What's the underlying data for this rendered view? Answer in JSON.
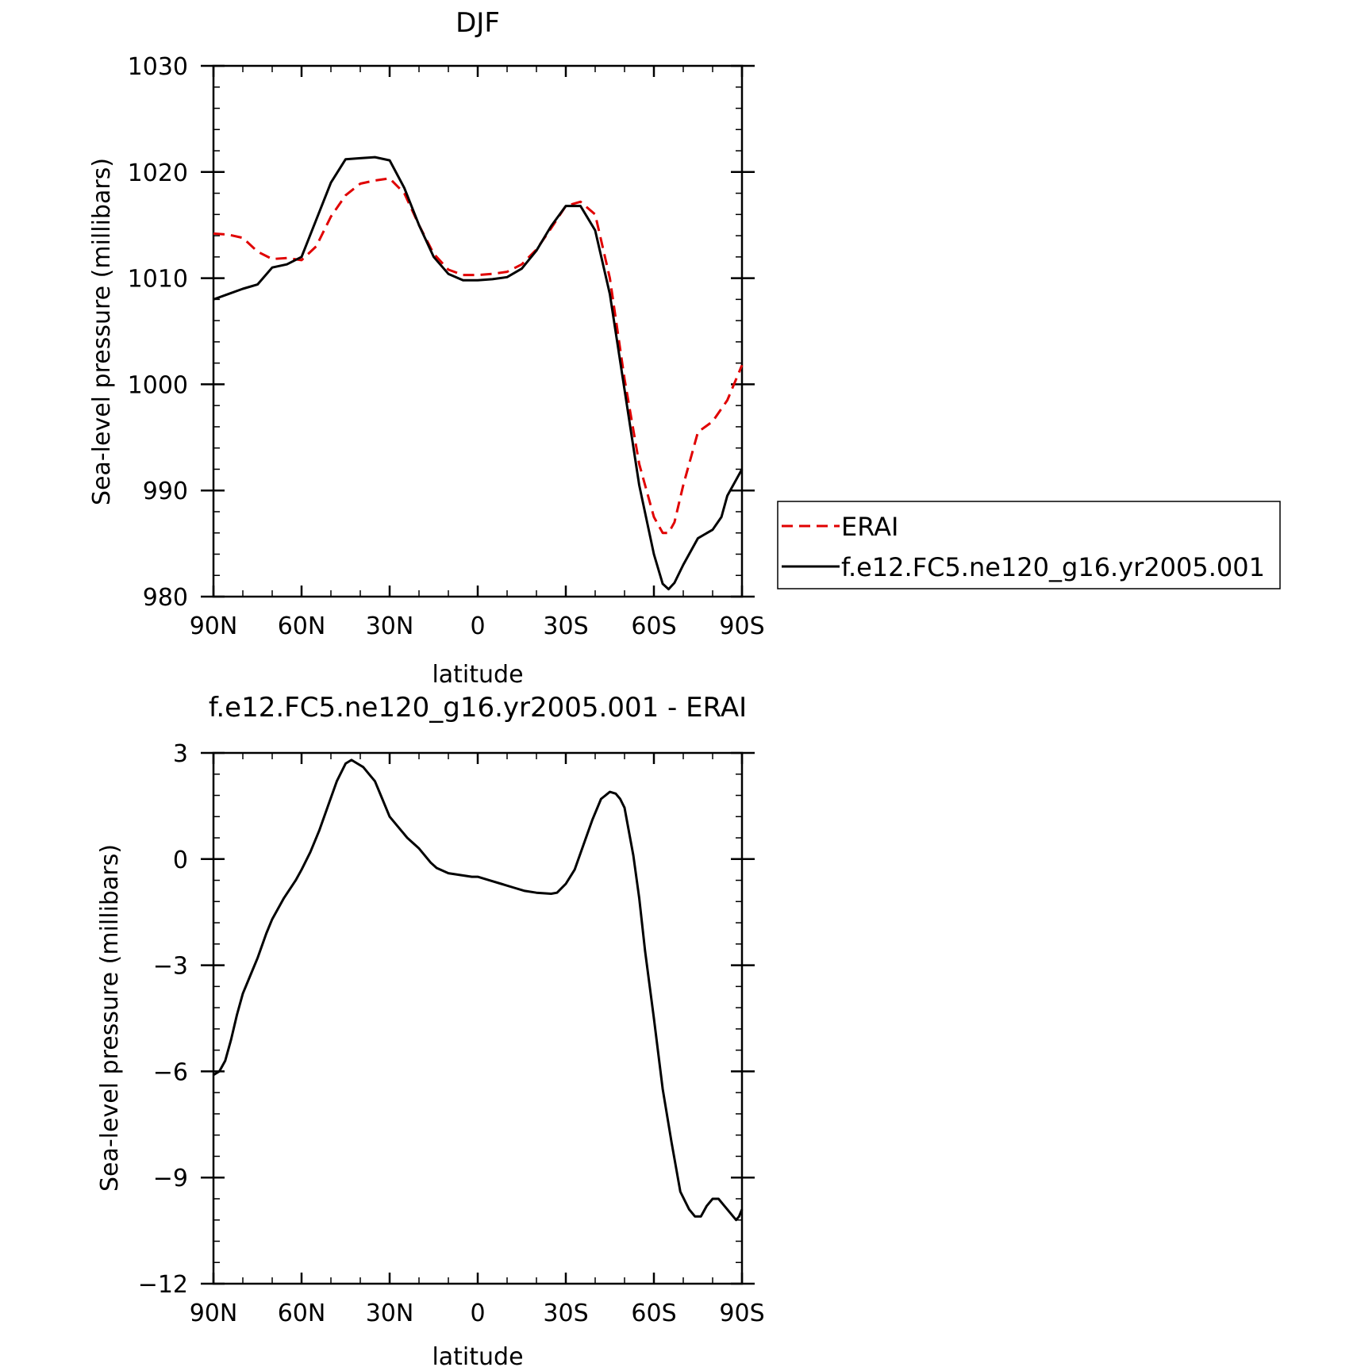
{
  "chart_data": [
    {
      "type": "line",
      "title": "DJF",
      "xlabel": "latitude",
      "ylabel": "Sea-level pressure (millibars)",
      "xlim": [
        90,
        -90
      ],
      "ylim": [
        980,
        1030
      ],
      "xticks": [
        90,
        60,
        30,
        0,
        -30,
        -60,
        -90
      ],
      "xtick_labels": [
        "90N",
        "60N",
        "30N",
        "0",
        "30S",
        "60S",
        "90S"
      ],
      "yticks": [
        980,
        990,
        1000,
        1010,
        1020,
        1030
      ],
      "ytick_labels": [
        "980",
        "990",
        "1000",
        "1010",
        "1020",
        "1030"
      ],
      "legend_position": "right",
      "series": [
        {
          "name": "ERAI",
          "color": "#e00000",
          "style": "dashed",
          "x": [
            90,
            85,
            80,
            75,
            70,
            65,
            60,
            55,
            50,
            45,
            40,
            35,
            30,
            25,
            20,
            15,
            10,
            5,
            0,
            -5,
            -10,
            -15,
            -20,
            -25,
            -30,
            -35,
            -40,
            -45,
            -50,
            -55,
            -60,
            -63,
            -65,
            -67,
            -70,
            -75,
            -80,
            -85,
            -90
          ],
          "values": [
            1014.2,
            1014.1,
            1013.8,
            1012.5,
            1011.8,
            1011.9,
            1011.7,
            1013.0,
            1015.8,
            1017.8,
            1018.9,
            1019.2,
            1019.4,
            1018.0,
            1015.0,
            1012.3,
            1010.8,
            1010.3,
            1010.3,
            1010.4,
            1010.6,
            1011.3,
            1012.7,
            1014.7,
            1016.8,
            1017.2,
            1016.0,
            1010.0,
            1000.5,
            992.5,
            987.5,
            986.0,
            986.0,
            987.0,
            990.5,
            995.5,
            996.5,
            998.5,
            1001.8
          ]
        },
        {
          "name": "f.e12.FC5.ne120_g16.yr2005.001",
          "color": "#000000",
          "style": "solid",
          "x": [
            90,
            85,
            80,
            75,
            70,
            65,
            60,
            55,
            50,
            45,
            40,
            35,
            30,
            25,
            20,
            15,
            10,
            5,
            0,
            -5,
            -10,
            -15,
            -20,
            -25,
            -30,
            -35,
            -40,
            -45,
            -50,
            -55,
            -60,
            -63,
            -65,
            -67,
            -70,
            -75,
            -80,
            -83,
            -85,
            -88,
            -90
          ],
          "values": [
            1008.0,
            1008.5,
            1009.0,
            1009.4,
            1011.0,
            1011.3,
            1012.0,
            1015.5,
            1019.0,
            1021.2,
            1021.3,
            1021.4,
            1021.1,
            1018.5,
            1015.0,
            1012.0,
            1010.4,
            1009.8,
            1009.8,
            1009.9,
            1010.1,
            1010.9,
            1012.6,
            1014.9,
            1016.8,
            1016.8,
            1014.5,
            1008.5,
            999.5,
            990.5,
            984.0,
            981.2,
            980.7,
            981.3,
            983.0,
            985.5,
            986.3,
            987.5,
            989.5,
            991.0,
            992.0
          ]
        }
      ]
    },
    {
      "type": "line",
      "title": "f.e12.FC5.ne120_g16.yr2005.001 - ERAI",
      "xlabel": "latitude",
      "ylabel": "Sea-level pressure (millibars)",
      "xlim": [
        90,
        -90
      ],
      "ylim": [
        -12,
        3
      ],
      "xticks": [
        90,
        60,
        30,
        0,
        -30,
        -60,
        -90
      ],
      "xtick_labels": [
        "90N",
        "60N",
        "30N",
        "0",
        "30S",
        "60S",
        "90S"
      ],
      "yticks": [
        -12,
        -9,
        -6,
        -3,
        0,
        3
      ],
      "ytick_labels": [
        "−12",
        "−9",
        "−6",
        "−3",
        "0",
        "3"
      ],
      "series": [
        {
          "color": "#000000",
          "style": "solid",
          "x": [
            90,
            88,
            86,
            84,
            82,
            80,
            77,
            75,
            72,
            70,
            66,
            62,
            60,
            57,
            54,
            51,
            48,
            45,
            43,
            41,
            39,
            37,
            35,
            33,
            30,
            27,
            24,
            20,
            16,
            14,
            10,
            6,
            2,
            0,
            -4,
            -8,
            -12,
            -16,
            -20,
            -25,
            -27,
            -30,
            -33,
            -36,
            -39,
            -42,
            -45,
            -47,
            -48.5,
            -50,
            -51,
            -53,
            -55,
            -57,
            -60,
            -63,
            -66,
            -69,
            -72,
            -74,
            -76,
            -78,
            -80,
            -81,
            -82,
            -84,
            -86,
            -88,
            -89,
            -90
          ],
          "values": [
            -6.1,
            -6.0,
            -5.7,
            -5.1,
            -4.4,
            -3.8,
            -3.2,
            -2.8,
            -2.1,
            -1.7,
            -1.1,
            -0.6,
            -0.3,
            0.2,
            0.8,
            1.5,
            2.2,
            2.7,
            2.8,
            2.7,
            2.6,
            2.4,
            2.2,
            1.8,
            1.2,
            0.9,
            0.6,
            0.3,
            -0.1,
            -0.25,
            -0.4,
            -0.45,
            -0.5,
            -0.5,
            -0.6,
            -0.7,
            -0.8,
            -0.9,
            -0.95,
            -0.98,
            -0.95,
            -0.7,
            -0.3,
            0.4,
            1.1,
            1.7,
            1.9,
            1.85,
            1.7,
            1.45,
            1.0,
            0.1,
            -1.1,
            -2.6,
            -4.5,
            -6.5,
            -8.0,
            -9.4,
            -9.9,
            -10.1,
            -10.1,
            -9.8,
            -9.6,
            -9.6,
            -9.6,
            -9.8,
            -10.0,
            -10.2,
            -10.1,
            -9.9
          ]
        }
      ]
    }
  ]
}
